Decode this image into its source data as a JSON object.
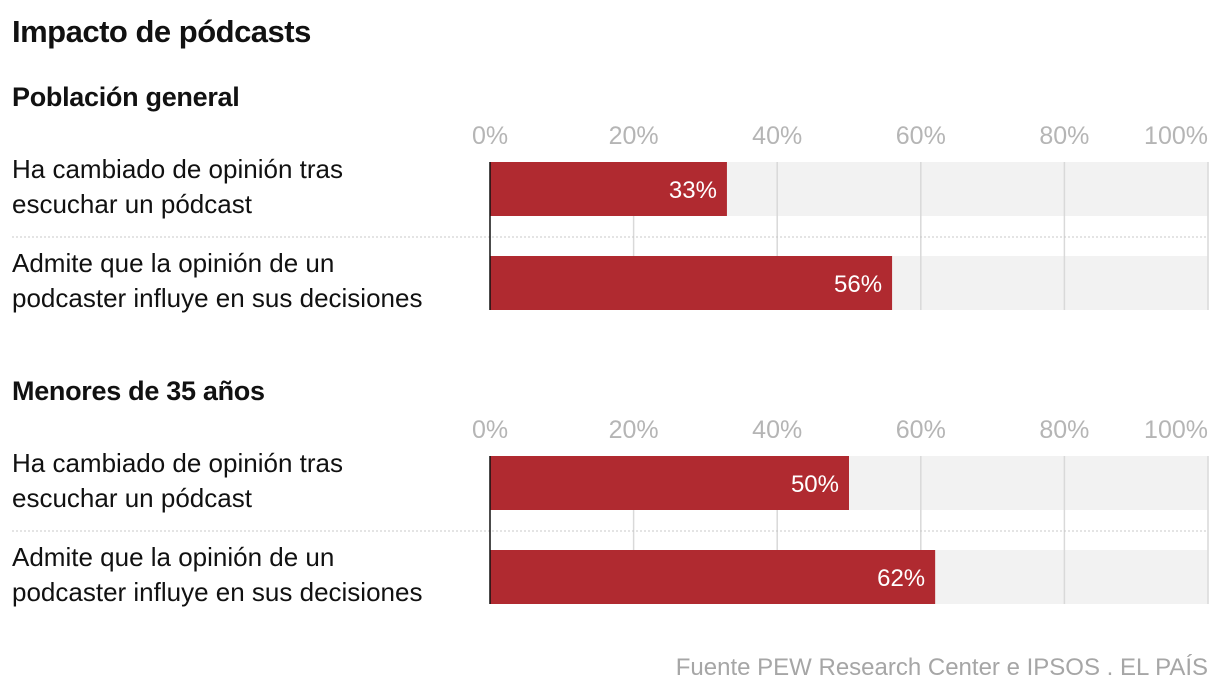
{
  "title": "Impacto de pódcasts",
  "source": "Fuente PEW Research Center e IPSOS . EL PAÍS",
  "colors": {
    "bar": "#b02a30",
    "track": "#f2f2f2",
    "grid": "#d9d9d9",
    "axis": "#111111"
  },
  "chart_data": [
    {
      "type": "bar",
      "orientation": "horizontal",
      "title": "Población general",
      "categories": [
        [
          "Ha cambiado de opinión tras",
          "escuchar un pódcast"
        ],
        [
          "Admite que la opinión de un",
          "podcaster influye en sus decisiones"
        ]
      ],
      "values": [
        33,
        56
      ],
      "value_labels": [
        "33%",
        "56%"
      ],
      "xlim": [
        0,
        100
      ],
      "ticks": [
        "0%",
        "20%",
        "40%",
        "60%",
        "80%",
        "100%"
      ],
      "grid": true
    },
    {
      "type": "bar",
      "orientation": "horizontal",
      "title": "Menores de 35 años",
      "categories": [
        [
          "Ha cambiado de opinión tras",
          "escuchar un pódcast"
        ],
        [
          "Admite que la opinión de un",
          "podcaster influye en sus decisiones"
        ]
      ],
      "values": [
        50,
        62
      ],
      "value_labels": [
        "50%",
        "62%"
      ],
      "xlim": [
        0,
        100
      ],
      "ticks": [
        "0%",
        "20%",
        "40%",
        "60%",
        "80%",
        "100%"
      ],
      "grid": true
    }
  ]
}
